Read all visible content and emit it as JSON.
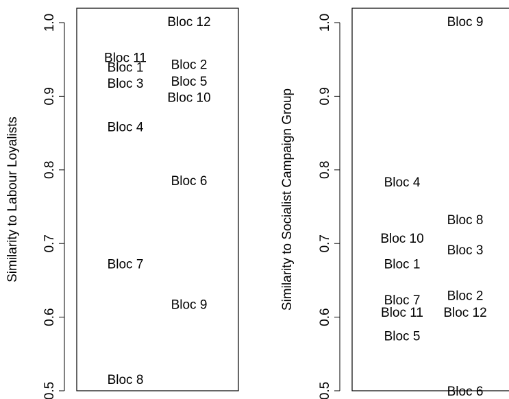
{
  "chart_data": [
    {
      "type": "scatter",
      "ylabel": "Similarity to Labour Loyalists",
      "ylim": [
        0.5,
        1.0
      ],
      "yticks": [
        "0.5",
        "0.6",
        "0.7",
        "0.8",
        "0.9",
        "1.0"
      ],
      "columns": 2,
      "points": [
        {
          "label": "Bloc 11",
          "column": 1,
          "y": 0.951
        },
        {
          "label": "Bloc 1",
          "column": 1,
          "y": 0.938
        },
        {
          "label": "Bloc 3",
          "column": 1,
          "y": 0.916
        },
        {
          "label": "Bloc 4",
          "column": 1,
          "y": 0.857
        },
        {
          "label": "Bloc 7",
          "column": 1,
          "y": 0.671
        },
        {
          "label": "Bloc 8",
          "column": 1,
          "y": 0.514
        },
        {
          "label": "Bloc 12",
          "column": 2,
          "y": 1.0
        },
        {
          "label": "Bloc 2",
          "column": 2,
          "y": 0.942
        },
        {
          "label": "Bloc 5",
          "column": 2,
          "y": 0.919
        },
        {
          "label": "Bloc 10",
          "column": 2,
          "y": 0.897
        },
        {
          "label": "Bloc 6",
          "column": 2,
          "y": 0.784
        },
        {
          "label": "Bloc 9",
          "column": 2,
          "y": 0.616
        }
      ]
    },
    {
      "type": "scatter",
      "ylabel": "Similarity to Socialist Campaign Group",
      "ylim": [
        0.5,
        1.0
      ],
      "yticks": [
        "0.5",
        "0.6",
        "0.7",
        "0.8",
        "0.9",
        "1.0"
      ],
      "columns": 2,
      "points": [
        {
          "label": "Bloc 4",
          "column": 1,
          "y": 0.782
        },
        {
          "label": "Bloc 10",
          "column": 1,
          "y": 0.706
        },
        {
          "label": "Bloc 1",
          "column": 1,
          "y": 0.671
        },
        {
          "label": "Bloc 7",
          "column": 1,
          "y": 0.622
        },
        {
          "label": "Bloc 11",
          "column": 1,
          "y": 0.605
        },
        {
          "label": "Bloc 5",
          "column": 1,
          "y": 0.573
        },
        {
          "label": "Bloc 9",
          "column": 2,
          "y": 1.0
        },
        {
          "label": "Bloc 8",
          "column": 2,
          "y": 0.731
        },
        {
          "label": "Bloc 3",
          "column": 2,
          "y": 0.69
        },
        {
          "label": "Bloc 2",
          "column": 2,
          "y": 0.628
        },
        {
          "label": "Bloc 12",
          "column": 2,
          "y": 0.605
        },
        {
          "label": "Bloc 6",
          "column": 2,
          "y": 0.498
        }
      ]
    }
  ]
}
